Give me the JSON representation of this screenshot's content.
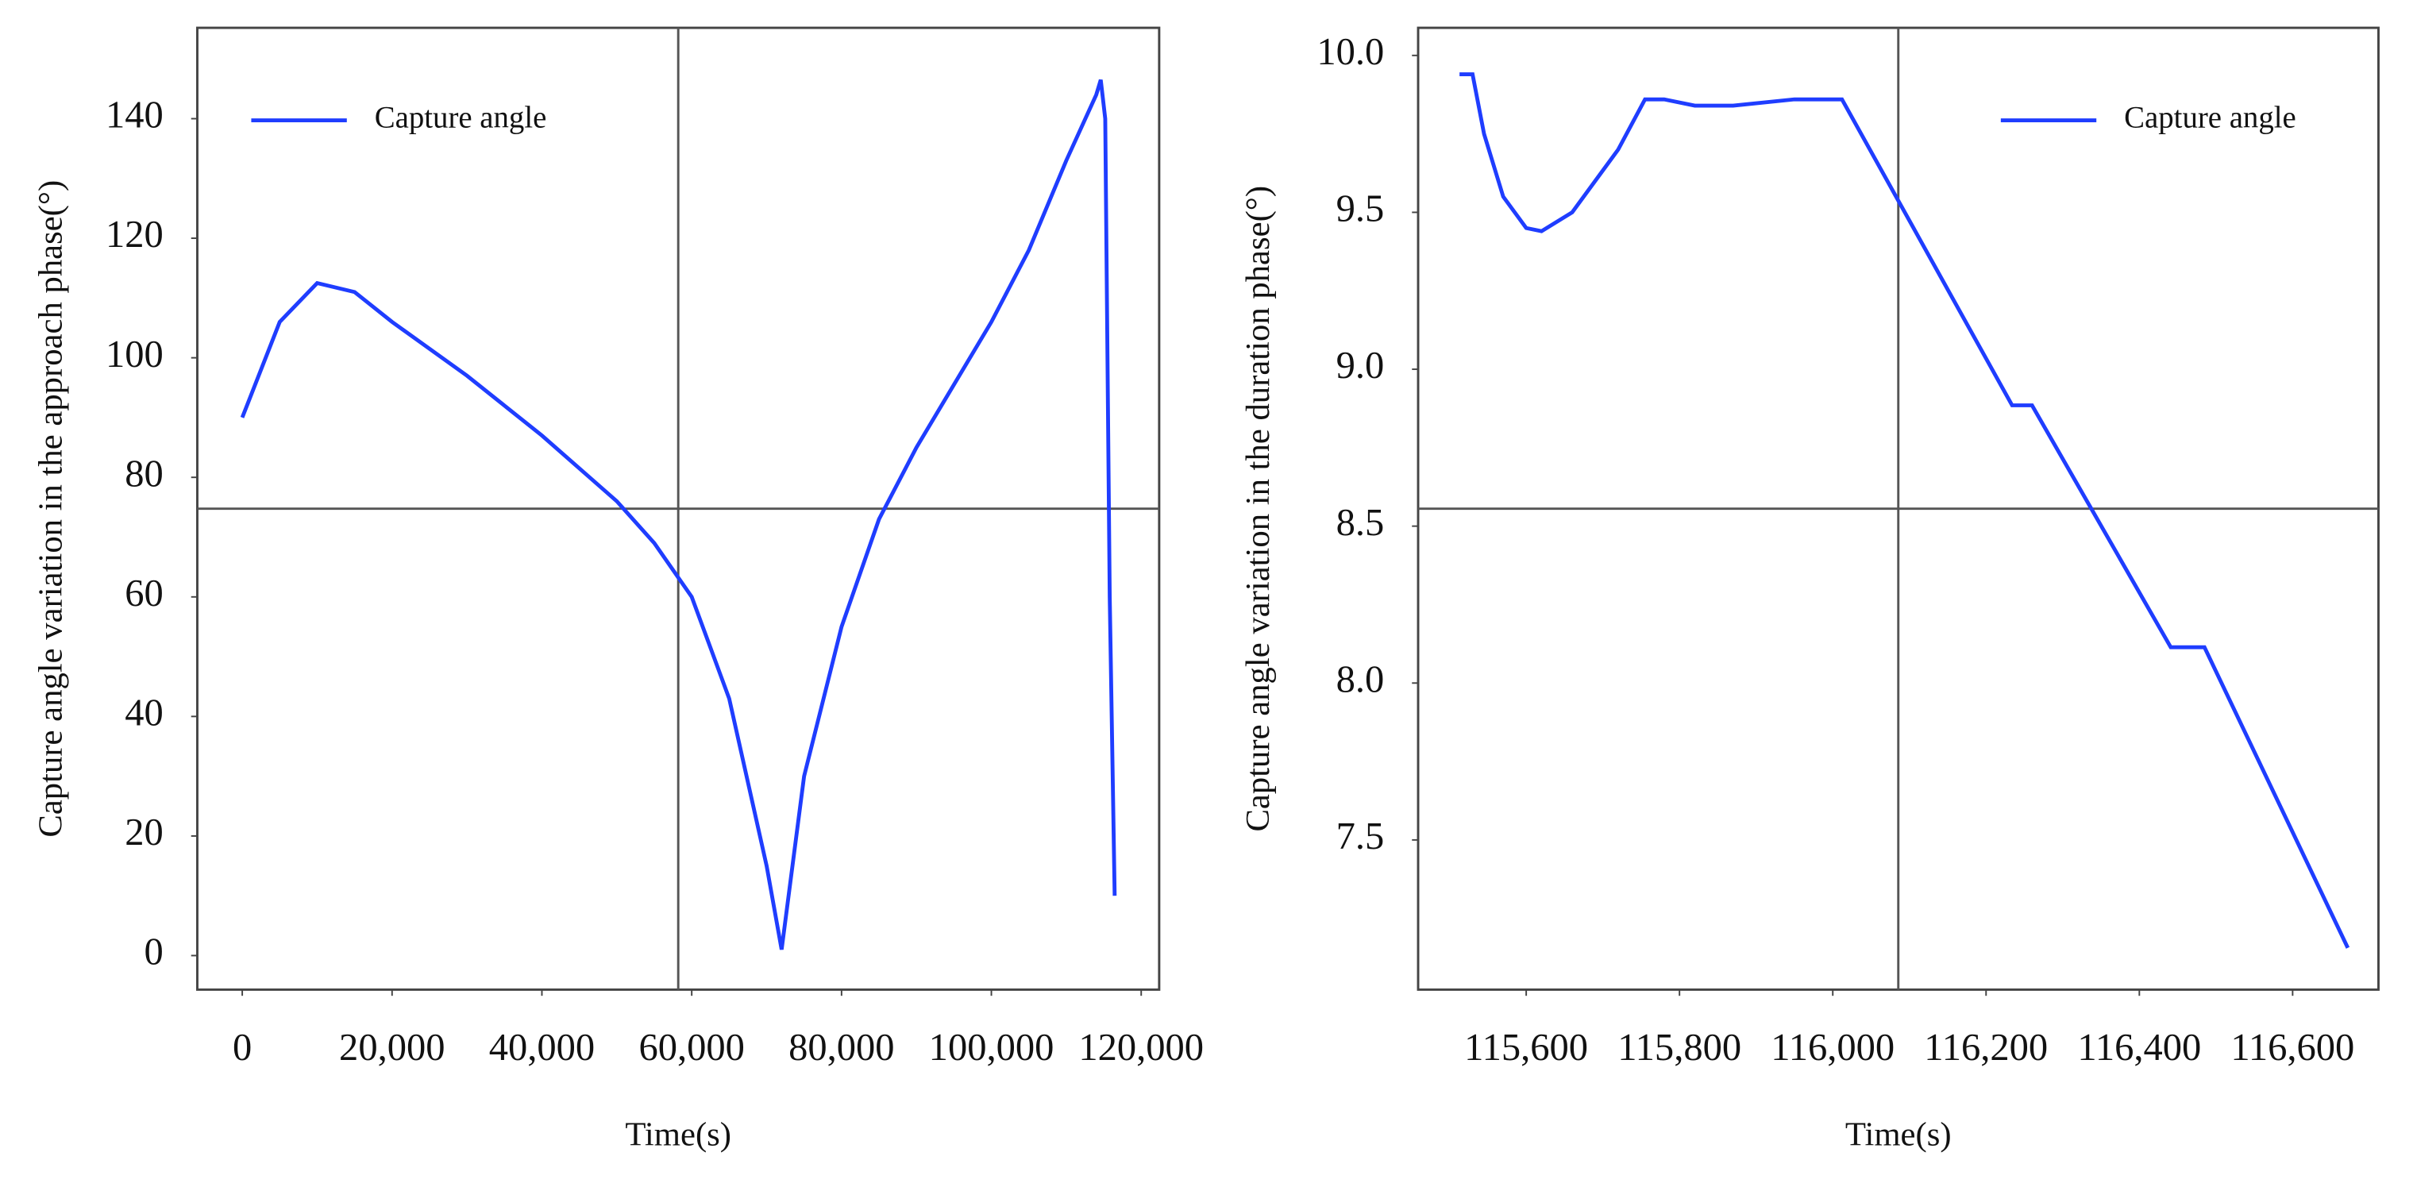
{
  "chart_data": [
    {
      "type": "line",
      "ylabel": "Capture angle variation in the approach phase(°)",
      "xlabel": "Time(s)",
      "x": [
        0,
        5000,
        10000,
        15000,
        20000,
        30000,
        40000,
        50000,
        55000,
        60000,
        65000,
        70000,
        72000,
        75000,
        80000,
        85000,
        90000,
        100000,
        105000,
        110000,
        114000,
        114600,
        115200,
        115800,
        116460
      ],
      "series": [
        {
          "name": "Capture angle",
          "color": "#1f3dff",
          "values": [
            90,
            106,
            112.5,
            111,
            106,
            97,
            87,
            76,
            69,
            60,
            43,
            15,
            1,
            30,
            55,
            73,
            85,
            106,
            118,
            133,
            144,
            146.5,
            140,
            60,
            10
          ]
        }
      ],
      "xlim": [
        -6000,
        122400
      ],
      "ylim": [
        -5.7,
        155.2
      ],
      "xticks": [
        0,
        {
          "value": 20000,
          "label": "20,000"
        },
        {
          "value": 40000,
          "label": "40,000"
        },
        {
          "value": 60000,
          "label": "60,000"
        },
        {
          "value": 80000,
          "label": "80,000"
        },
        {
          "value": 100000,
          "label": "100,000"
        },
        {
          "value": 120000,
          "label": "120,000"
        }
      ],
      "yticks": [
        0,
        20,
        40,
        60,
        80,
        100,
        120,
        140
      ],
      "legend": "upper left"
    },
    {
      "type": "line",
      "ylabel": "Capture angle variation in the duration phase(°)",
      "xlabel": "Time(s)",
      "x": [
        115513,
        115530,
        115545,
        115570,
        115600,
        115620,
        115660,
        115720,
        115755,
        115780,
        115820,
        115870,
        115950,
        116012,
        116234,
        116260,
        116441,
        116485,
        116672
      ],
      "series": [
        {
          "name": "Capture angle",
          "color": "#1f3dff",
          "values": [
            9.94,
            9.94,
            9.75,
            9.55,
            9.45,
            9.44,
            9.5,
            9.7,
            9.86,
            9.86,
            9.84,
            9.84,
            9.86,
            9.86,
            8.885,
            8.885,
            8.114,
            8.114,
            7.156
          ]
        }
      ],
      "xlim": [
        115459,
        116712
      ],
      "ylim": [
        7.023,
        10.088
      ],
      "xticks": [
        {
          "value": 115600,
          "label": "115,600"
        },
        {
          "value": 115800,
          "label": "115,800"
        },
        {
          "value": 116000,
          "label": "116,000"
        },
        {
          "value": 116200,
          "label": "116,200"
        },
        {
          "value": 116400,
          "label": "116,400"
        },
        {
          "value": 116600,
          "label": "116,600"
        }
      ],
      "yticks": [
        {
          "value": 10,
          "label": "10.0"
        },
        9.5,
        {
          "value": 9,
          "label": "9.0"
        },
        8.5,
        {
          "value": 8,
          "label": "8.0"
        },
        7.5
      ],
      "legend": "upper right"
    }
  ]
}
